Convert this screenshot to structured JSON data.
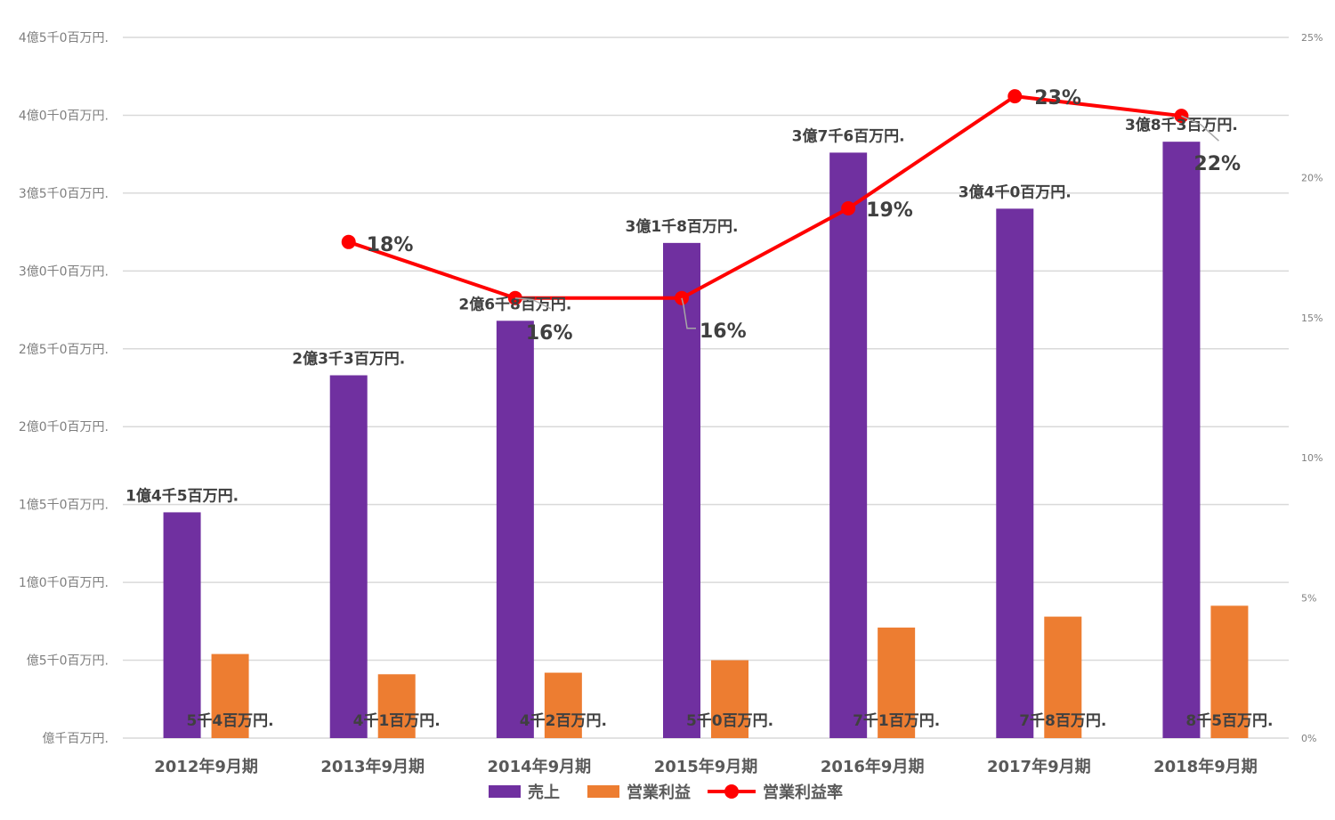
{
  "chart_data": {
    "type": "bar",
    "categories": [
      "2012年9月期",
      "2013年9月期",
      "2014年9月期",
      "2015年9月期",
      "2016年9月期",
      "2017年9月期",
      "2018年9月期"
    ],
    "series": [
      {
        "name": "売上",
        "kind": "bar",
        "axis": "left",
        "values": [
          1450,
          2330,
          2680,
          3180,
          3760,
          3400,
          3830
        ],
        "labels": [
          "1億4千5百万円.",
          "2億3千3百万円.",
          "2億6千8百万円.",
          "3億1千8百万円.",
          "3億7千6百万円.",
          "3億4千0百万円.",
          "3億8千3百万円."
        ],
        "color": "#7030a0"
      },
      {
        "name": "営業利益",
        "kind": "bar",
        "axis": "left",
        "values": [
          540,
          410,
          420,
          500,
          710,
          780,
          850
        ],
        "labels": [
          "5千4百万円.",
          "4千1百万円.",
          "4千2百万円.",
          "5千0百万円.",
          "7千1百万円.",
          "7千8百万円.",
          "8千5百万円."
        ],
        "color": "#ed7d31"
      },
      {
        "name": "営業利益率",
        "kind": "line",
        "axis": "right",
        "values": [
          null,
          17.7,
          15.7,
          15.7,
          18.9,
          22.9,
          22.2
        ],
        "labels": [
          null,
          "18%",
          "16%",
          "16%",
          "19%",
          "23%",
          "22%"
        ],
        "color": "#ff0000"
      }
    ],
    "y_axis": {
      "ylim": [
        0,
        4500
      ],
      "ticks": [
        0,
        500,
        1000,
        1500,
        2000,
        2500,
        3000,
        3500,
        4000,
        4500
      ],
      "tick_labels": [
        "億千百万円.",
        "億5千0百万円.",
        "1億0千0百万円.",
        "1億5千0百万円.",
        "2億0千0百万円.",
        "2億5千0百万円.",
        "3億0千0百万円.",
        "3億5千0百万円.",
        "4億0千0百万円.",
        "4億5千0百万円."
      ]
    },
    "y2_axis": {
      "ylim": [
        0,
        25
      ],
      "ticks": [
        0,
        5,
        10,
        15,
        20,
        25
      ],
      "tick_labels": [
        "0%",
        "5%",
        "10%",
        "15%",
        "20%",
        "25%"
      ]
    },
    "grid": true,
    "legend_position": "bottom"
  }
}
